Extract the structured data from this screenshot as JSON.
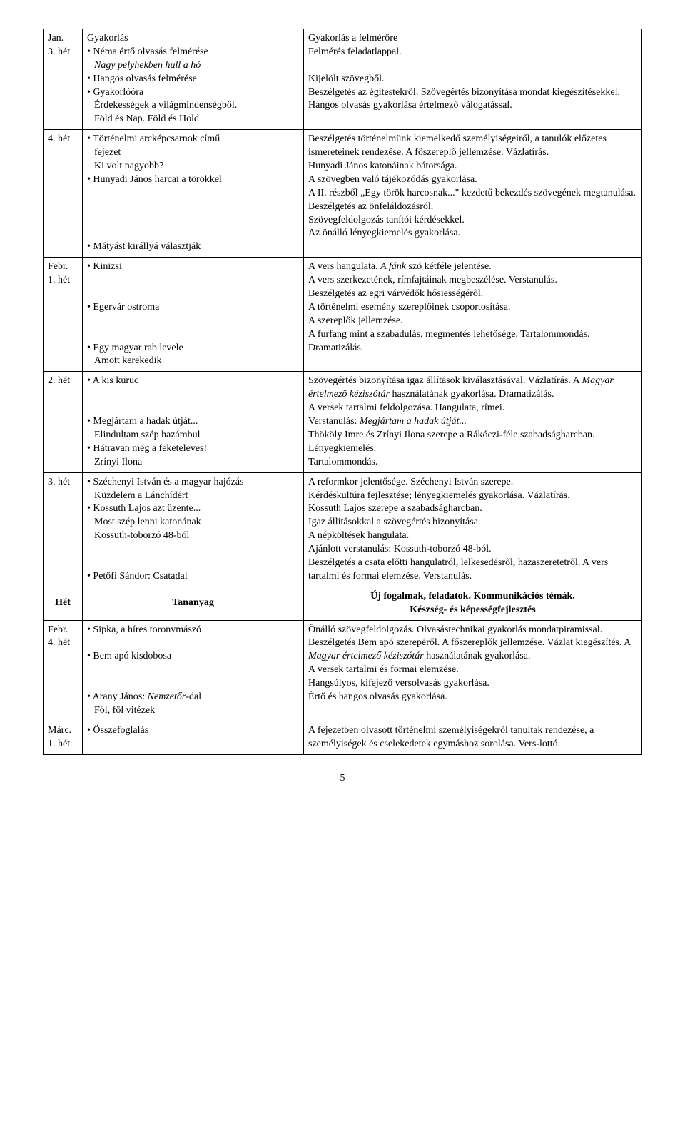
{
  "rows": [
    {
      "left": [
        {
          "t": "Jan."
        },
        {
          "t": "3. hét"
        }
      ],
      "mid": [
        {
          "t": "Gyakorlás"
        },
        {
          "b": "Néma értő olvasás felmérése"
        },
        {
          "pi": "Nagy pelyhekben hull a hó"
        },
        {
          "b": "Hangos olvasás felmérése"
        },
        {
          "b": "Gyakorlóóra"
        },
        {
          "p": "Érdekességek a világmindenségből."
        },
        {
          "p": "Föld és Nap. Föld és Hold"
        }
      ],
      "right": [
        {
          "t": "Gyakorlás a felmérőre"
        },
        {
          "t": "Felmérés feladatlappal."
        },
        {
          "t": " "
        },
        {
          "t": "Kijelölt szövegből."
        },
        {
          "t": "Beszélgetés az égitestekről. Szövegértés bizonyítása mondat kiegészítésekkel."
        },
        {
          "t": "Hangos olvasás gyakorlása értelmező válogatással."
        }
      ]
    },
    {
      "left": [
        {
          "t": "4. hét"
        }
      ],
      "mid": [
        {
          "b": "Történelmi arcképcsarnok című"
        },
        {
          "p": "fejezet"
        },
        {
          "p": "Ki volt nagyobb?"
        },
        {
          "b": "Hunyadi János harcai a törökkel"
        },
        {
          "t": " "
        },
        {
          "t": " "
        },
        {
          "t": " "
        },
        {
          "t": " "
        },
        {
          "b": "Mátyást királlyá választják"
        }
      ],
      "right": [
        {
          "t": "Beszélgetés történelmünk kiemelkedő személyiségeiről, a tanulók előzetes ismereteinek rendezése. A főszereplő jellemzése. Vázlatírás."
        },
        {
          "t": "Hunyadi János katonáinak bátorsága."
        },
        {
          "t": "A szövegben való tájékozódás gyakorlása."
        },
        {
          "t": "A II. részből „Egy török harcosnak...\" kezdetű bekezdés szövegének megtanulása. Beszélgetés az önfeláldozásról."
        },
        {
          "t": "Szövegfeldolgozás tanítói kérdésekkel."
        },
        {
          "t": "Az önálló lényegkiemelés gyakorlása."
        }
      ]
    },
    {
      "left": [
        {
          "t": "Febr."
        },
        {
          "t": "1. hét"
        }
      ],
      "mid": [
        {
          "b": "Kinizsi"
        },
        {
          "t": " "
        },
        {
          "t": " "
        },
        {
          "b": "Egervár ostroma"
        },
        {
          "t": " "
        },
        {
          "t": " "
        },
        {
          "b": "Egy magyar rab levele"
        },
        {
          "p": "Amott kerekedik"
        }
      ],
      "right": [
        {
          "mix": [
            {
              "t": "A vers hangulata. "
            },
            {
              "i": "A fánk"
            },
            {
              "t": " szó kétféle jelentése."
            }
          ]
        },
        {
          "t": "A vers szerkezetének, rímfajtáinak megbeszélése. Verstanulás."
        },
        {
          "t": "Beszélgetés az egri várvédők hősiességéről."
        },
        {
          "t": "A történelmi esemény szereplőinek csoportosítása."
        },
        {
          "t": "A szereplők jellemzése."
        },
        {
          "t": "A furfang mint a szabadulás, megmentés lehetősége. Tartalommondás. Dramatizálás."
        }
      ]
    },
    {
      "left": [
        {
          "t": "2. hét"
        }
      ],
      "mid": [
        {
          "b": "A kis kuruc"
        },
        {
          "t": " "
        },
        {
          "t": " "
        },
        {
          "b": "Megjártam a hadak útját..."
        },
        {
          "p": "Elindultam szép hazámbul"
        },
        {
          "b": "Hátravan még a feketeleves!"
        },
        {
          "p": "Zrínyi Ilona"
        }
      ],
      "right": [
        {
          "mix": [
            {
              "t": "Szövegértés bizonyítása igaz állítások kiválasztásával. Vázlatírás. A "
            },
            {
              "i": "Magyar értelmező kéziszótár"
            },
            {
              "t": " használatának gyakorlása. Dramatizálás."
            }
          ]
        },
        {
          "t": "A versek tartalmi feldolgozása. Hangulata, rímei."
        },
        {
          "mix": [
            {
              "t": "Verstanulás: "
            },
            {
              "i": "Megjártam a hadak útját..."
            }
          ]
        },
        {
          "t": "Thököly Imre és Zrínyi Ilona szerepe a Rákóczi-féle szabadságharcban. Lényegkiemelés."
        },
        {
          "t": "Tartalommondás."
        }
      ]
    },
    {
      "left": [
        {
          "t": "3. hét"
        }
      ],
      "mid": [
        {
          "b": "Széchenyi István és a magyar hajózás"
        },
        {
          "p": "Küzdelem a Lánchídért"
        },
        {
          "b": "Kossuth Lajos azt üzente..."
        },
        {
          "p": "Most szép lenni katonának"
        },
        {
          "p": "Kossuth-toborzó 48-ból"
        },
        {
          "t": " "
        },
        {
          "t": " "
        },
        {
          "b": "Petőfi Sándor: Csatadal"
        }
      ],
      "right": [
        {
          "t": "A reformkor jelentősége. Széchenyi István szerepe."
        },
        {
          "t": "Kérdéskultúra fejlesztése; lényegkiemelés gyakorlása. Vázlatírás."
        },
        {
          "t": "Kossuth Lajos szerepe a szabadságharcban."
        },
        {
          "t": "Igaz állításokkal a szövegértés bizonyítása."
        },
        {
          "t": "A népköltések hangulata."
        },
        {
          "t": "Ajánlott verstanulás: Kossuth-toborzó 48-ból."
        },
        {
          "t": "Beszélgetés a csata előtti hangulatról, lelkesedésről, hazaszeretetről. A vers tartalmi és formai elemzése. Verstanulás."
        }
      ]
    },
    {
      "header": true,
      "left": [
        {
          "bt": "Hét"
        }
      ],
      "mid": [
        {
          "bt": "Tananyag"
        }
      ],
      "right": [
        {
          "bt": "Új fogalmak, feladatok. Kommunikációs témák."
        },
        {
          "bt": "Készség- és képességfejlesztés"
        }
      ]
    },
    {
      "left": [
        {
          "t": "Febr."
        },
        {
          "t": "4. hét"
        }
      ],
      "mid": [
        {
          "b": "Sipka, a híres toronymászó"
        },
        {
          "t": " "
        },
        {
          "b": "Bem apó kisdobosa"
        },
        {
          "t": " "
        },
        {
          "t": " "
        },
        {
          "bmix": [
            {
              "t": "Arany János: "
            },
            {
              "i": "Nemzetőr"
            },
            {
              "t": "-dal"
            }
          ]
        },
        {
          "p": "Föl, föl vitézek"
        }
      ],
      "right": [
        {
          "t": "Önálló szövegfeldolgozás. Olvasástechnikai gyakorlás mondatpiramissal."
        },
        {
          "mix": [
            {
              "t": "Beszélgetés Bem apó szerepéről. A főszereplők jellemzése. Vázlat kiegészítés. A "
            },
            {
              "i": "Magyar értelmező kéziszótár"
            },
            {
              "t": " használatának gyakorlása."
            }
          ]
        },
        {
          "t": "A versek tartalmi és formai elemzése."
        },
        {
          "t": "Hangsúlyos, kifejező versolvasás gyakorlása."
        },
        {
          "t": "Értő és hangos olvasás gyakorlása."
        }
      ]
    },
    {
      "left": [
        {
          "t": "Márc."
        },
        {
          "t": "1. hét"
        }
      ],
      "mid": [
        {
          "b": "Összefoglalás"
        }
      ],
      "right": [
        {
          "t": "A fejezetben olvasott történelmi személyiségekről tanultak rendezése, a személyiségek és cselekedetek egymáshoz sorolása. Vers-lottó."
        }
      ]
    }
  ],
  "pagenum": "5"
}
